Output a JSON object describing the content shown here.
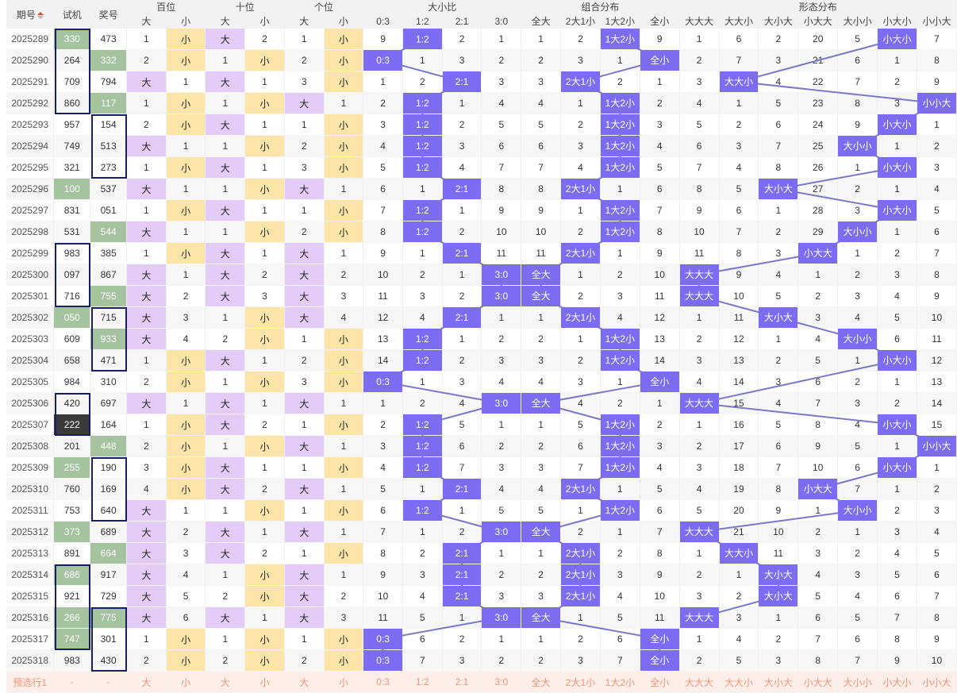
{
  "header": {
    "col_qihao": "期号",
    "col_shiji": "试机",
    "col_jianghao": "奖号",
    "groups": [
      "百位",
      "十位",
      "个位",
      "大小比",
      "组合分布",
      "形态分布"
    ],
    "sub_bs": [
      "大",
      "小"
    ],
    "sub_ratio": [
      "0:3",
      "1:2",
      "2:1",
      "3:0"
    ],
    "sub_combo": [
      "全大",
      "2大1小",
      "1大2小",
      "全小"
    ],
    "sub_shape": [
      "大大大",
      "大大小",
      "大小大",
      "小大大",
      "大小小",
      "小大小",
      "小小大"
    ]
  },
  "rows": [
    {
      "q": "2025289",
      "s": "330",
      "j": "473",
      "sh": "g",
      "jh": "",
      "bai": [
        1,
        "小"
      ],
      "shi": [
        "大",
        2
      ],
      "ge": [
        1,
        "小"
      ],
      "r": [
        9,
        "1:2",
        2,
        1
      ],
      "c": [
        1,
        2,
        "1大2小",
        9
      ],
      "x": [
        1,
        6,
        2,
        20,
        5,
        "小大小",
        7
      ]
    },
    {
      "q": "2025290",
      "s": "264",
      "j": "332",
      "sh": "",
      "jh": "g",
      "bai": [
        2,
        "小"
      ],
      "shi": [
        1,
        "小"
      ],
      "ge": [
        2,
        "小"
      ],
      "r": [
        "0:3",
        1,
        3,
        2
      ],
      "c": [
        2,
        3,
        1,
        "全小"
      ],
      "x": [
        2,
        7,
        3,
        21,
        6,
        1,
        8
      ]
    },
    {
      "q": "2025291",
      "s": "709",
      "j": "794",
      "sh": "",
      "jh": "",
      "bai": [
        "大",
        1
      ],
      "shi": [
        "大",
        1
      ],
      "ge": [
        3,
        "小"
      ],
      "r": [
        1,
        2,
        "2:1",
        3
      ],
      "c": [
        3,
        "2大1小",
        2,
        1
      ],
      "x": [
        3,
        "大大小",
        4,
        22,
        7,
        2,
        9
      ]
    },
    {
      "q": "2025292",
      "s": "860",
      "j": "117",
      "sh": "",
      "jh": "g",
      "bai": [
        1,
        "小"
      ],
      "shi": [
        1,
        "小"
      ],
      "ge": [
        "大",
        1
      ],
      "r": [
        2,
        "1:2",
        1,
        4
      ],
      "c": [
        4,
        1,
        "1大2小",
        2
      ],
      "x": [
        4,
        1,
        5,
        23,
        8,
        3,
        "小小大"
      ]
    },
    {
      "q": "2025293",
      "s": "957",
      "j": "154",
      "sh": "",
      "jh": "",
      "bai": [
        2,
        "小"
      ],
      "shi": [
        "大",
        1
      ],
      "ge": [
        1,
        "小"
      ],
      "r": [
        3,
        "1:2",
        2,
        5
      ],
      "c": [
        5,
        2,
        "1大2小",
        3
      ],
      "x": [
        5,
        2,
        6,
        24,
        9,
        "小大小",
        1
      ]
    },
    {
      "q": "2025294",
      "s": "749",
      "j": "513",
      "sh": "",
      "jh": "",
      "bai": [
        "大",
        1
      ],
      "shi": [
        1,
        "小"
      ],
      "ge": [
        2,
        "小"
      ],
      "r": [
        4,
        "1:2",
        3,
        6
      ],
      "c": [
        6,
        3,
        "1大2小",
        4
      ],
      "x": [
        6,
        3,
        7,
        25,
        "大小小",
        1,
        2
      ]
    },
    {
      "q": "2025295",
      "s": "321",
      "j": "273",
      "sh": "",
      "jh": "",
      "bai": [
        1,
        "小"
      ],
      "shi": [
        "大",
        1
      ],
      "ge": [
        3,
        "小"
      ],
      "r": [
        5,
        "1:2",
        4,
        7
      ],
      "c": [
        7,
        4,
        "1大2小",
        5
      ],
      "x": [
        7,
        4,
        8,
        26,
        1,
        "小大小",
        3
      ]
    },
    {
      "q": "2025296",
      "s": "100",
      "j": "537",
      "sh": "g",
      "jh": "",
      "bai": [
        "大",
        1
      ],
      "shi": [
        1,
        "小"
      ],
      "ge": [
        "大",
        1
      ],
      "r": [
        6,
        1,
        "2:1",
        8
      ],
      "c": [
        8,
        "2大1小",
        1,
        6
      ],
      "x": [
        8,
        5,
        "大小大",
        27,
        2,
        1,
        4
      ]
    },
    {
      "q": "2025297",
      "s": "831",
      "j": "051",
      "sh": "",
      "jh": "",
      "bai": [
        1,
        "小"
      ],
      "shi": [
        "大",
        1
      ],
      "ge": [
        1,
        "小"
      ],
      "r": [
        7,
        "1:2",
        1,
        9
      ],
      "c": [
        9,
        1,
        "1大2小",
        7
      ],
      "x": [
        9,
        6,
        1,
        28,
        3,
        "小大小",
        5
      ]
    },
    {
      "q": "2025298",
      "s": "531",
      "j": "544",
      "sh": "",
      "jh": "g",
      "bai": [
        "大",
        1
      ],
      "shi": [
        1,
        "小"
      ],
      "ge": [
        2,
        "小"
      ],
      "r": [
        8,
        "1:2",
        2,
        10
      ],
      "c": [
        10,
        2,
        "1大2小",
        8
      ],
      "x": [
        10,
        7,
        2,
        29,
        "大小小",
        1,
        6
      ]
    },
    {
      "q": "2025299",
      "s": "983",
      "j": "385",
      "sh": "",
      "jh": "",
      "bai": [
        1,
        "小"
      ],
      "shi": [
        "大",
        1
      ],
      "ge": [
        "大",
        1
      ],
      "r": [
        9,
        1,
        "2:1",
        11
      ],
      "c": [
        11,
        "2大1小",
        1,
        9
      ],
      "x": [
        11,
        8,
        3,
        "小大大",
        1,
        2,
        7
      ]
    },
    {
      "q": "2025300",
      "s": "097",
      "j": "867",
      "sh": "",
      "jh": "",
      "bai": [
        "大",
        1
      ],
      "shi": [
        "大",
        2
      ],
      "ge": [
        "大",
        2
      ],
      "r": [
        10,
        2,
        1,
        "3:0"
      ],
      "c": [
        "全大",
        1,
        2,
        10
      ],
      "x": [
        "大大大",
        9,
        4,
        1,
        2,
        3,
        8
      ]
    },
    {
      "q": "2025301",
      "s": "716",
      "j": "755",
      "sh": "",
      "jh": "g",
      "bai": [
        "大",
        2
      ],
      "shi": [
        "大",
        3
      ],
      "ge": [
        "大",
        3
      ],
      "r": [
        11,
        3,
        2,
        "3:0"
      ],
      "c": [
        "全大",
        2,
        3,
        11
      ],
      "x": [
        "大大大",
        10,
        5,
        2,
        3,
        4,
        9
      ]
    },
    {
      "q": "2025302",
      "s": "050",
      "j": "715",
      "sh": "g",
      "jh": "",
      "bai": [
        "大",
        3
      ],
      "shi": [
        1,
        "小"
      ],
      "ge": [
        "大",
        4
      ],
      "r": [
        12,
        4,
        "2:1",
        1
      ],
      "c": [
        1,
        "2大1小",
        4,
        12
      ],
      "x": [
        1,
        11,
        "大小大",
        3,
        4,
        5,
        10
      ]
    },
    {
      "q": "2025303",
      "s": "609",
      "j": "933",
      "sh": "",
      "jh": "g",
      "bai": [
        "大",
        4
      ],
      "shi": [
        2,
        "小"
      ],
      "ge": [
        1,
        "小"
      ],
      "r": [
        13,
        "1:2",
        1,
        2
      ],
      "c": [
        2,
        1,
        "1大2小",
        13
      ],
      "x": [
        2,
        12,
        1,
        4,
        "大小小",
        6,
        11
      ]
    },
    {
      "q": "2025304",
      "s": "658",
      "j": "471",
      "sh": "",
      "jh": "",
      "bai": [
        1,
        "小"
      ],
      "shi": [
        "大",
        1
      ],
      "ge": [
        2,
        "小"
      ],
      "r": [
        14,
        "1:2",
        2,
        3
      ],
      "c": [
        3,
        2,
        "1大2小",
        14
      ],
      "x": [
        3,
        13,
        2,
        5,
        1,
        "小大小",
        12
      ]
    },
    {
      "q": "2025305",
      "s": "984",
      "j": "310",
      "sh": "",
      "jh": "",
      "bai": [
        2,
        "小"
      ],
      "shi": [
        1,
        "小"
      ],
      "ge": [
        3,
        "小"
      ],
      "r": [
        "0:3",
        1,
        3,
        4
      ],
      "c": [
        4,
        3,
        1,
        "全小"
      ],
      "x": [
        4,
        14,
        3,
        6,
        2,
        1,
        13
      ]
    },
    {
      "q": "2025306",
      "s": "420",
      "j": "697",
      "sh": "",
      "jh": "",
      "bai": [
        "大",
        1
      ],
      "shi": [
        "大",
        1
      ],
      "ge": [
        "大",
        1
      ],
      "r": [
        1,
        2,
        4,
        "3:0"
      ],
      "c": [
        "全大",
        4,
        2,
        1
      ],
      "x": [
        "大大大",
        15,
        4,
        7,
        3,
        2,
        14
      ]
    },
    {
      "q": "2025307",
      "s": "222",
      "j": "164",
      "sh": "d",
      "jh": "",
      "bai": [
        1,
        "小"
      ],
      "shi": [
        "大",
        2
      ],
      "ge": [
        1,
        "小"
      ],
      "r": [
        2,
        "1:2",
        5,
        1
      ],
      "c": [
        1,
        5,
        "1大2小",
        2
      ],
      "x": [
        1,
        16,
        5,
        8,
        4,
        "小大小",
        15
      ]
    },
    {
      "q": "2025308",
      "s": "201",
      "j": "448",
      "sh": "",
      "jh": "g",
      "bai": [
        2,
        "小"
      ],
      "shi": [
        1,
        "小"
      ],
      "ge": [
        "大",
        1
      ],
      "r": [
        3,
        "1:2",
        6,
        2
      ],
      "c": [
        2,
        6,
        "1大2小",
        3
      ],
      "x": [
        2,
        17,
        6,
        9,
        5,
        1,
        "小小大"
      ]
    },
    {
      "q": "2025309",
      "s": "255",
      "j": "190",
      "sh": "g",
      "jh": "",
      "bai": [
        3,
        "小"
      ],
      "shi": [
        "大",
        1
      ],
      "ge": [
        1,
        "小"
      ],
      "r": [
        4,
        "1:2",
        7,
        3
      ],
      "c": [
        3,
        7,
        "1大2小",
        4
      ],
      "x": [
        3,
        18,
        7,
        10,
        6,
        "小大小",
        1
      ]
    },
    {
      "q": "2025310",
      "s": "760",
      "j": "169",
      "sh": "",
      "jh": "",
      "bai": [
        4,
        "小"
      ],
      "shi": [
        "大",
        2
      ],
      "ge": [
        "大",
        1
      ],
      "r": [
        5,
        1,
        "2:1",
        4
      ],
      "c": [
        4,
        "2大1小",
        1,
        5
      ],
      "x": [
        4,
        19,
        8,
        "小大大",
        7,
        1,
        2
      ]
    },
    {
      "q": "2025311",
      "s": "753",
      "j": "640",
      "sh": "",
      "jh": "",
      "bai": [
        "大",
        1
      ],
      "shi": [
        1,
        "小"
      ],
      "ge": [
        1,
        "小"
      ],
      "r": [
        6,
        "1:2",
        1,
        5
      ],
      "c": [
        5,
        1,
        "1大2小",
        6
      ],
      "x": [
        5,
        20,
        9,
        1,
        "大小小",
        2,
        3
      ]
    },
    {
      "q": "2025312",
      "s": "373",
      "j": "689",
      "sh": "g",
      "jh": "",
      "bai": [
        "大",
        2
      ],
      "shi": [
        "大",
        1
      ],
      "ge": [
        "大",
        1
      ],
      "r": [
        7,
        1,
        2,
        "3:0"
      ],
      "c": [
        "全大",
        2,
        1,
        7
      ],
      "x": [
        "大大大",
        21,
        10,
        2,
        1,
        3,
        4
      ]
    },
    {
      "q": "2025313",
      "s": "891",
      "j": "664",
      "sh": "",
      "jh": "g",
      "bai": [
        "大",
        3
      ],
      "shi": [
        "大",
        2
      ],
      "ge": [
        1,
        "小"
      ],
      "r": [
        8,
        2,
        "2:1",
        1
      ],
      "c": [
        1,
        "2大1小",
        2,
        8
      ],
      "x": [
        1,
        "大大小",
        11,
        3,
        2,
        4,
        5
      ]
    },
    {
      "q": "2025314",
      "s": "686",
      "j": "917",
      "sh": "g",
      "jh": "",
      "bai": [
        "大",
        4
      ],
      "shi": [
        1,
        "小"
      ],
      "ge": [
        "大",
        1
      ],
      "r": [
        9,
        3,
        "2:1",
        2
      ],
      "c": [
        2,
        "2大1小",
        3,
        9
      ],
      "x": [
        2,
        1,
        "大小大",
        4,
        3,
        5,
        6
      ]
    },
    {
      "q": "2025315",
      "s": "921",
      "j": "729",
      "sh": "",
      "jh": "",
      "bai": [
        "大",
        5
      ],
      "shi": [
        2,
        "小"
      ],
      "ge": [
        "大",
        2
      ],
      "r": [
        10,
        4,
        "2:1",
        3
      ],
      "c": [
        3,
        "2大1小",
        4,
        10
      ],
      "x": [
        3,
        2,
        "大小大",
        5,
        4,
        6,
        7
      ]
    },
    {
      "q": "2025316",
      "s": "266",
      "j": "775",
      "sh": "g",
      "jh": "g",
      "bai": [
        "大",
        6
      ],
      "shi": [
        "大",
        1
      ],
      "ge": [
        "大",
        3
      ],
      "r": [
        11,
        5,
        1,
        "3:0"
      ],
      "c": [
        "全大",
        1,
        5,
        11
      ],
      "x": [
        "大大大",
        3,
        1,
        6,
        5,
        7,
        8
      ]
    },
    {
      "q": "2025317",
      "s": "747",
      "j": "301",
      "sh": "g",
      "jh": "",
      "bai": [
        1,
        "小"
      ],
      "shi": [
        1,
        "小"
      ],
      "ge": [
        1,
        "小"
      ],
      "r": [
        "0:3",
        6,
        2,
        1
      ],
      "c": [
        1,
        2,
        6,
        "全小"
      ],
      "x": [
        1,
        4,
        2,
        7,
        6,
        8,
        9
      ]
    },
    {
      "q": "2025318",
      "s": "983",
      "j": "430",
      "sh": "",
      "jh": "",
      "bai": [
        2,
        "小"
      ],
      "shi": [
        2,
        "小"
      ],
      "ge": [
        2,
        "小"
      ],
      "r": [
        "0:3",
        7,
        3,
        2
      ],
      "c": [
        2,
        3,
        7,
        "全小"
      ],
      "x": [
        2,
        5,
        3,
        8,
        7,
        9,
        10
      ]
    }
  ],
  "pred_row": {
    "label": "预选行1",
    "dash": "-",
    "cells": [
      "大",
      "小",
      "大",
      "小",
      "大",
      "小",
      "0:3",
      "1:2",
      "2:1",
      "3:0",
      "全大",
      "2大1小",
      "1大2小",
      "全小",
      "大大大",
      "大大小",
      "大小大",
      "小大大",
      "大小小",
      "小大小",
      "小小大"
    ]
  },
  "colors": {
    "hit": "#7b6cf2",
    "big": "#e3ccf8",
    "small": "#fde4a8",
    "green": "#a6c39f",
    "box": "#1a1f63",
    "line": "#7b78c9"
  }
}
